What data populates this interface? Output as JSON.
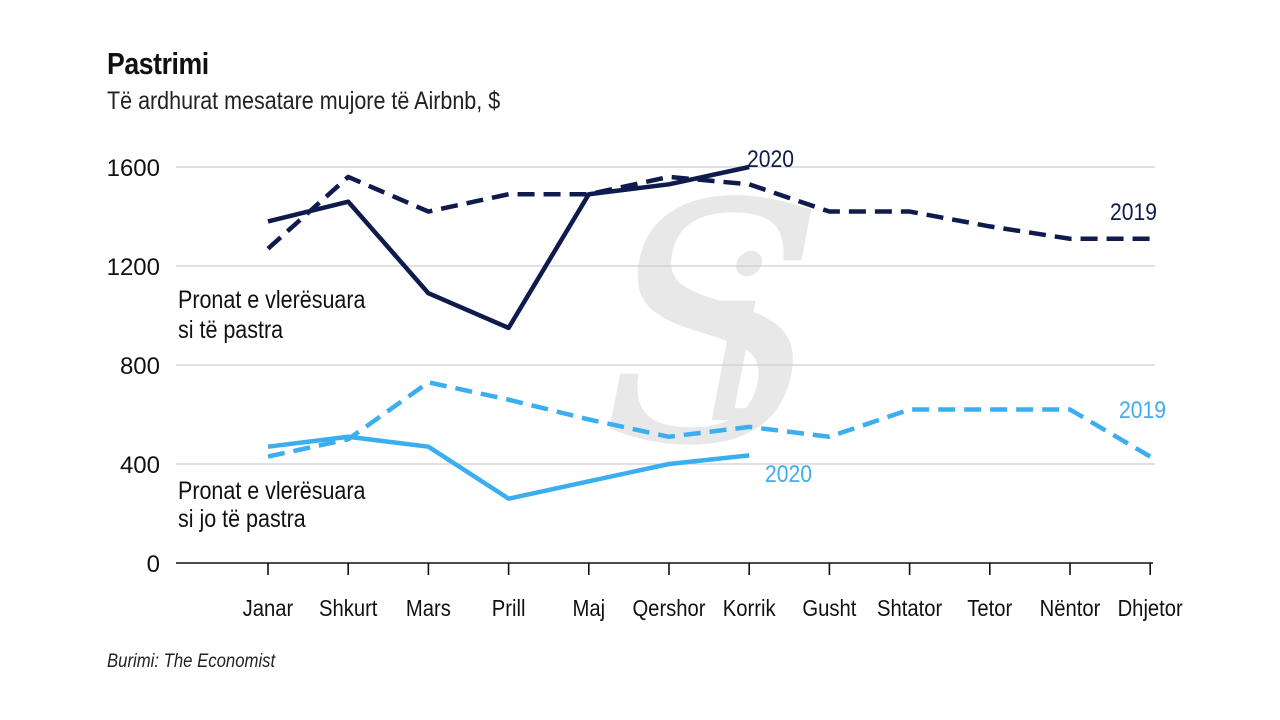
{
  "header": {
    "title": "Pastrimi",
    "subtitle": "Të ardhurat mesatare mujore të Airbnb, $"
  },
  "footer": {
    "source": "Burimi: The Economist"
  },
  "chart_data": {
    "type": "line",
    "title": "Pastrimi",
    "subtitle": "Të ardhurat mesatare mujore të Airbnb, $",
    "xlabel": "",
    "ylabel": "",
    "ylim": [
      0,
      1600
    ],
    "yticks": [
      0,
      400,
      800,
      1200,
      1600
    ],
    "grid": true,
    "categories": [
      "Janar",
      "Shkurt",
      "Mars",
      "Prill",
      "Maj",
      "Qershor",
      "Korrik",
      "Gusht",
      "Shtator",
      "Tetor",
      "Nëntor",
      "Dhjetor"
    ],
    "series": [
      {
        "name": "2019",
        "group": "Pronat e vlerësuara si të pastra",
        "color": "#0f1a4d",
        "style": "dashed",
        "values": [
          1270,
          1560,
          1420,
          1490,
          1490,
          1560,
          1530,
          1420,
          1420,
          1360,
          1310,
          1310
        ]
      },
      {
        "name": "2020",
        "group": "Pronat e vlerësuara si të pastra",
        "color": "#0f1a4d",
        "style": "solid",
        "values": [
          1380,
          1460,
          1090,
          950,
          1490,
          1530,
          1600,
          null,
          null,
          null,
          null,
          null
        ]
      },
      {
        "name": "2019",
        "group": "Pronat e vlerësuara si jo të pastra",
        "color": "#3aaeef",
        "style": "dashed",
        "values": [
          430,
          500,
          730,
          660,
          580,
          510,
          550,
          510,
          620,
          620,
          620,
          430
        ]
      },
      {
        "name": "2020",
        "group": "Pronat e vlerësuara si jo të pastra",
        "color": "#3aaeef",
        "style": "solid",
        "values": [
          470,
          510,
          470,
          260,
          330,
          400,
          435,
          null,
          null,
          null,
          null,
          null
        ]
      }
    ],
    "annotations": [
      {
        "text_line1": "Pronat e vlerësuara",
        "text_line2": "si të pastra"
      },
      {
        "text_line1": "Pronat e vlerësuara",
        "text_line2": "si jo të pastra"
      }
    ]
  }
}
